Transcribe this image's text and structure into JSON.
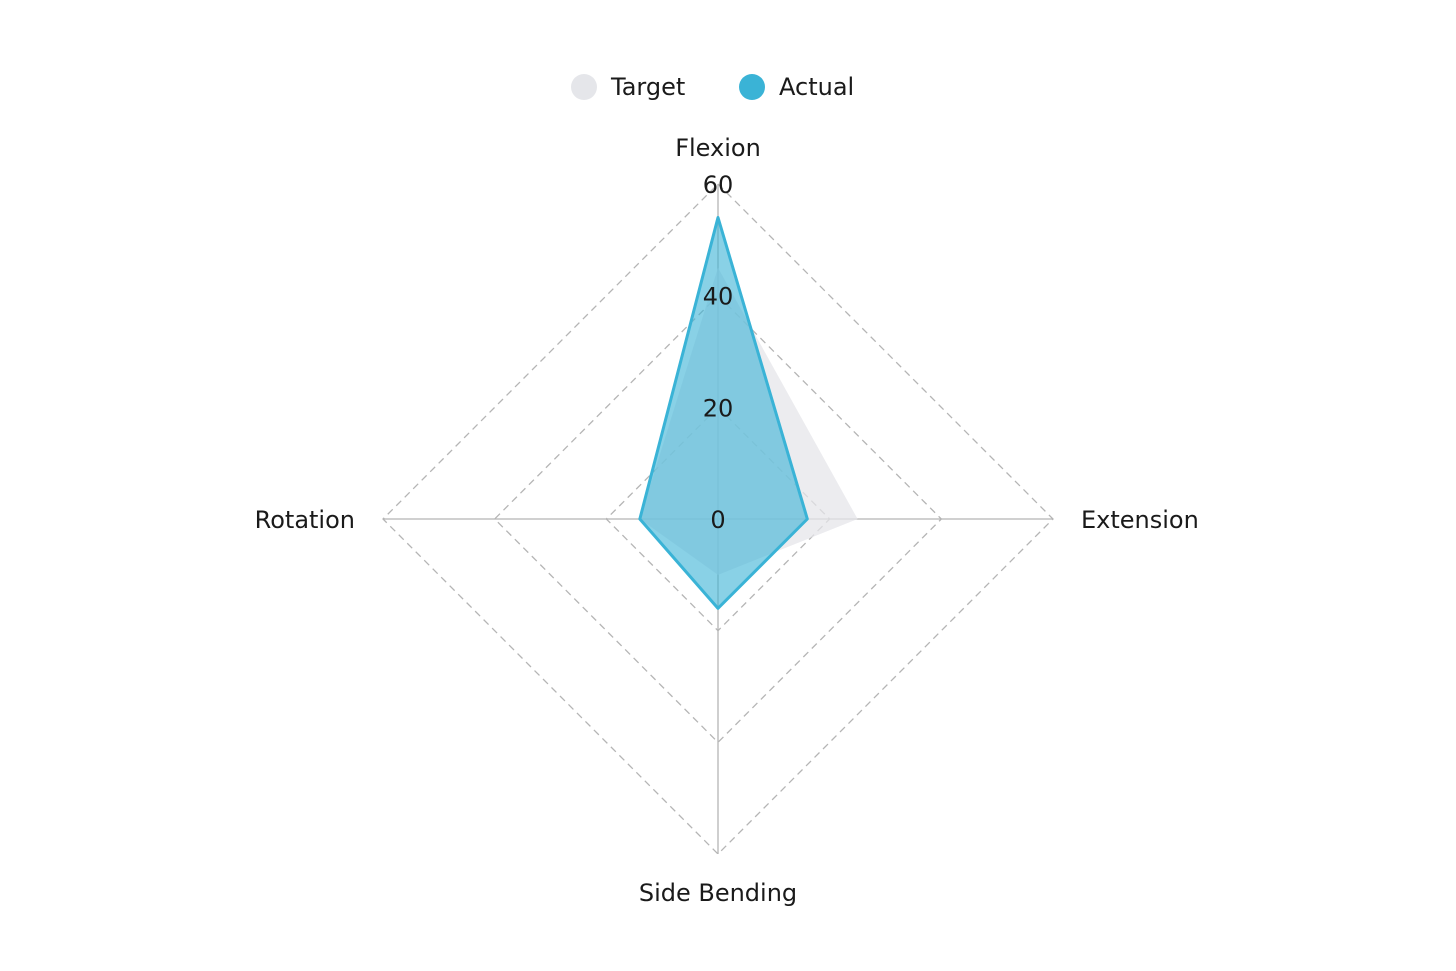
{
  "chart_data": {
    "type": "radar",
    "axes": [
      "Flexion",
      "Extension",
      "Side Bending",
      "Rotation"
    ],
    "ticks": [
      "0",
      "20",
      "40",
      "60"
    ],
    "rlim": [
      0,
      60
    ],
    "grid": true,
    "legend_position": "top-center",
    "series": [
      {
        "name": "Target",
        "values": [
          45,
          25,
          10,
          14
        ],
        "color": "#e5e6ea"
      },
      {
        "name": "Actual",
        "values": [
          54,
          16,
          16,
          14
        ],
        "color": "#3ab3d6"
      }
    ]
  }
}
